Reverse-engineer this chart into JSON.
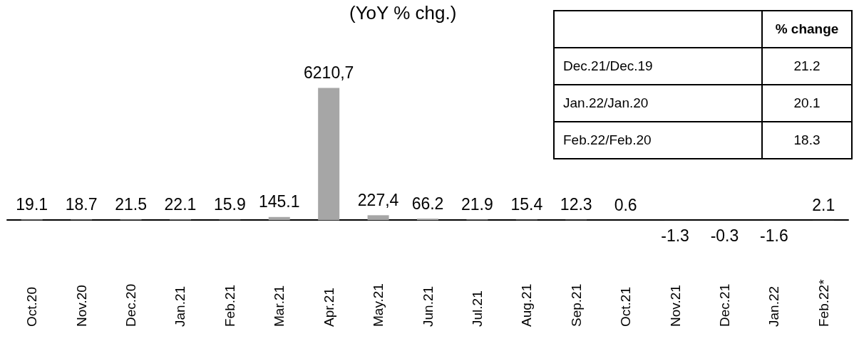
{
  "chart_data": [
    {
      "type": "bar",
      "title": "(YoY % chg.)",
      "categories": [
        "Oct.20",
        "Nov.20",
        "Dec.20",
        "Jan.21",
        "Feb.21",
        "Mar.21",
        "Apr.21",
        "May.21",
        "Jun.21",
        "Jul.21",
        "Aug.21",
        "Sep.21",
        "Oct.21",
        "Nov.21",
        "Dec.21",
        "Jan.22",
        "Feb.22*"
      ],
      "values": [
        19.1,
        18.7,
        21.5,
        22.1,
        15.9,
        145.1,
        6210.7,
        227.4,
        66.2,
        21.9,
        15.4,
        12.3,
        0.6,
        -1.3,
        -0.3,
        -1.6,
        2.1
      ],
      "value_labels": [
        "19.1",
        "18.7",
        "21.5",
        "22.1",
        "15.9",
        "145.1",
        "6210,7",
        "227,4",
        "66.2",
        "21.9",
        "15.4",
        "12.3",
        "0.6",
        "-1.3",
        "-0.3",
        "-1.6",
        "2.1"
      ],
      "color": "#a6a6a6",
      "grid": false
    },
    {
      "type": "other",
      "annotations": [
        "% change",
        "Dec.21/Dec.19",
        "21.2",
        "Jan.22/Jan.20",
        "20.1",
        "Feb.22/Feb.20",
        "18.3"
      ]
    }
  ]
}
